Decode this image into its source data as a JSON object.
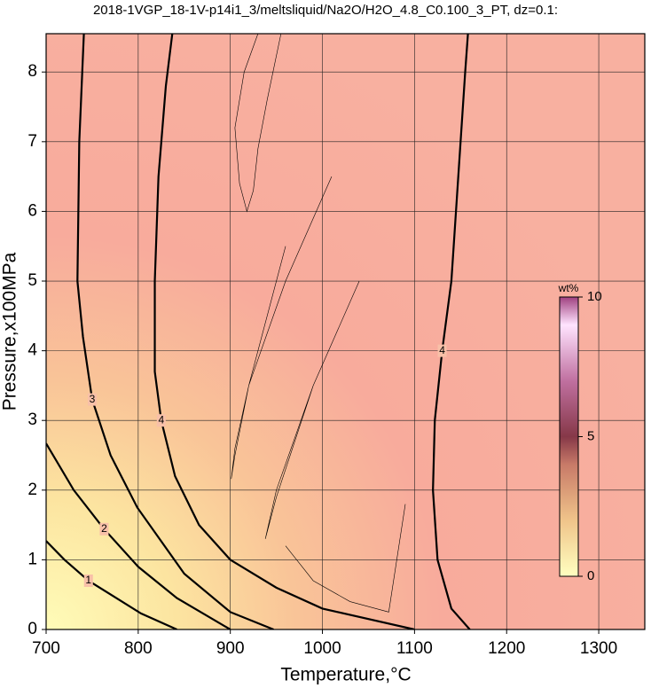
{
  "chart_data": {
    "type": "contour",
    "title": "2018-1VGP_18-1V-p14i1_3/meltsliquid/Na2O/H2O_4.8_C0.100_3_PT, dz=0.1:",
    "x_label": "Temperature,°C",
    "y_label": "Pressure,x100MPa",
    "xlim": [
      700,
      1350
    ],
    "xticks": [
      700,
      800,
      900,
      1000,
      1100,
      1200,
      1300
    ],
    "ylim": [
      0,
      8.55
    ],
    "yticks": [
      0,
      1,
      2,
      3,
      4,
      5,
      6,
      7,
      8
    ],
    "grid": true,
    "contours": [
      {
        "level": 4,
        "x": [
          1160,
          1140,
          1125,
          1120,
          1122,
          1130,
          1140,
          1145,
          1150,
          1155,
          1158
        ],
        "y": [
          0,
          0.3,
          1,
          2,
          3,
          4,
          5,
          6,
          7,
          8,
          8.55
        ]
      },
      {
        "level": 4,
        "x": [
          1100,
          1000,
          950,
          900,
          866,
          840,
          825,
          818,
          818,
          822,
          830,
          837
        ],
        "y": [
          0,
          0.3,
          0.6,
          1.0,
          1.5,
          2.2,
          3.0,
          3.7,
          5.0,
          6.5,
          7.8,
          8.55
        ]
      },
      {
        "level": 3,
        "x": [
          947,
          900,
          850,
          799,
          770,
          750,
          740,
          734,
          736,
          741
        ],
        "y": [
          0,
          0.25,
          0.8,
          1.75,
          2.5,
          3.3,
          4.2,
          5,
          7,
          8.55
        ]
      },
      {
        "level": 2,
        "x": [
          900,
          842,
          800,
          763,
          730,
          700
        ],
        "y": [
          0,
          0.45,
          0.9,
          1.44,
          2.0,
          2.67
        ]
      },
      {
        "level": 1,
        "x": [
          842,
          803,
          746,
          720,
          700
        ],
        "y": [
          0,
          0.23,
          0.7,
          1.0,
          1.27
        ]
      }
    ],
    "thin_contours": [
      {
        "x": [
          955,
          940,
          930,
          925,
          918,
          910,
          905,
          915,
          930
        ],
        "y": [
          8.55,
          7.6,
          6.9,
          6.3,
          6.0,
          6.4,
          7.2,
          8.0,
          8.55
        ]
      },
      {
        "x": [
          1010,
          960,
          920,
          905,
          901,
          905,
          920,
          960
        ],
        "y": [
          6.5,
          5.0,
          3.5,
          2.6,
          2.16,
          2.5,
          3.5,
          5.5
        ]
      },
      {
        "x": [
          1040,
          990,
          950,
          938,
          950,
          990
        ],
        "y": [
          5.0,
          3.5,
          2.0,
          1.3,
          1.9,
          3.5
        ]
      },
      {
        "x": [
          1090,
          1072,
          1030,
          990,
          960
        ],
        "y": [
          1.8,
          0.25,
          0.4,
          0.7,
          1.2
        ]
      }
    ],
    "colorbar": {
      "label": "wt%",
      "lim": [
        0,
        10
      ],
      "ticks": [
        0,
        5,
        10
      ]
    }
  }
}
